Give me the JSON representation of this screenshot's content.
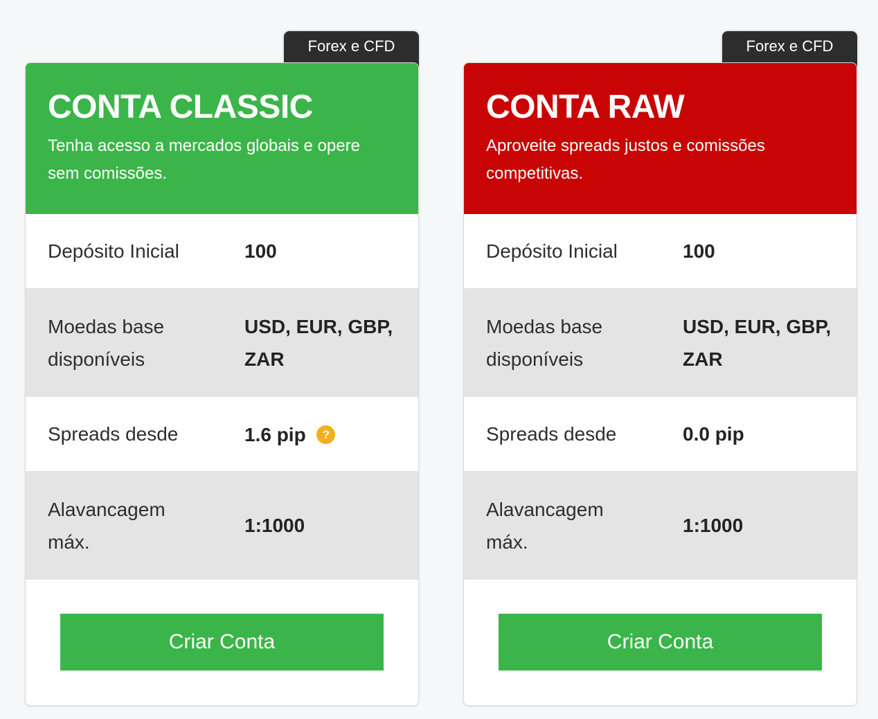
{
  "colors": {
    "page_bg": "#F6F7F9",
    "classic_green": "#3BB54A",
    "raw_red": "#C90404",
    "tab_dark": "#2D2D2D",
    "row_alt_gray": "#E4E4E4",
    "button_green": "#3BB54A",
    "help_icon_amber": "#F2B01E"
  },
  "cards": [
    {
      "tab_label": "Forex e CFD",
      "title": "CONTA CLASSIC",
      "subtitle": "Tenha acesso a mercados globais e opere sem comissões.",
      "header_color": "#3BB54A",
      "rows": [
        {
          "label": "Depósito Inicial",
          "value": "100"
        },
        {
          "label": "Moedas base disponíveis",
          "value": "USD, EUR, GBP, ZAR"
        },
        {
          "label": "Spreads desde",
          "value": "1.6 pip",
          "help_icon": "?"
        },
        {
          "label": "Alavancagem máx.",
          "value": "1:1000"
        }
      ],
      "button_label": "Criar Conta"
    },
    {
      "tab_label": "Forex e CFD",
      "title": "CONTA RAW",
      "subtitle": "Aproveite spreads justos e comissões competitivas.",
      "header_color": "#C90404",
      "rows": [
        {
          "label": "Depósito Inicial",
          "value": "100"
        },
        {
          "label": "Moedas base disponíveis",
          "value": "USD, EUR, GBP, ZAR"
        },
        {
          "label": "Spreads desde",
          "value": "0.0 pip"
        },
        {
          "label": "Alavancagem máx.",
          "value": "1:1000"
        }
      ],
      "button_label": "Criar Conta"
    }
  ]
}
